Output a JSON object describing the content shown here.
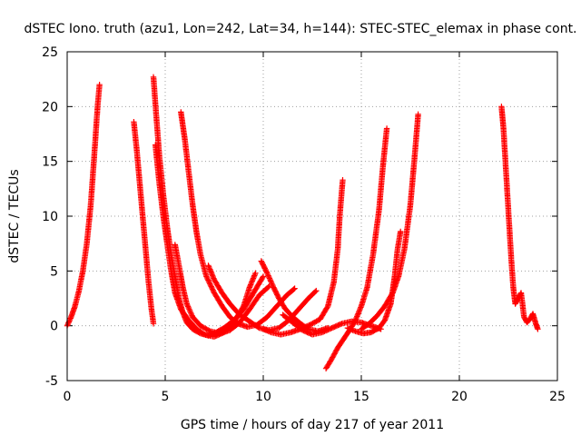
{
  "chart_data": {
    "type": "scatter",
    "title": "dSTEC Iono. truth (azu1, Lon=242, Lat=34, h=144): STEC-STEC_elemax in phase cont.",
    "xlabel": "GPS time / hours of day 217 of year 2011",
    "ylabel": "dSTEC  / TECUs",
    "xlim": [
      0,
      25
    ],
    "ylim": [
      -5,
      25
    ],
    "xticks": [
      0,
      5,
      10,
      15,
      20,
      25
    ],
    "yticks": [
      -5,
      0,
      5,
      10,
      15,
      20,
      25
    ],
    "xtick_labels": [
      "0",
      "5",
      "10",
      "15",
      "20",
      "25"
    ],
    "ytick_labels": [
      "-5",
      "0",
      "5",
      "10",
      "15",
      "20",
      "25"
    ],
    "grid": true,
    "marker": "plus",
    "color": "#ff0000",
    "series": [
      {
        "points": [
          [
            0.0,
            0.0
          ],
          [
            0.2,
            0.8
          ],
          [
            0.4,
            1.8
          ],
          [
            0.6,
            3.2
          ],
          [
            0.8,
            5.0
          ],
          [
            1.0,
            7.5
          ],
          [
            1.2,
            11.0
          ],
          [
            1.4,
            16.0
          ],
          [
            1.55,
            20.0
          ],
          [
            1.65,
            22.0
          ]
        ]
      },
      {
        "points": [
          [
            3.4,
            18.6
          ],
          [
            3.55,
            16.0
          ],
          [
            3.7,
            13.0
          ],
          [
            3.85,
            10.0
          ],
          [
            4.0,
            7.0
          ],
          [
            4.15,
            4.0
          ],
          [
            4.3,
            1.5
          ],
          [
            4.4,
            0.2
          ]
        ]
      },
      {
        "points": [
          [
            4.4,
            22.7
          ],
          [
            4.55,
            19.0
          ],
          [
            4.7,
            15.5
          ],
          [
            4.9,
            12.0
          ],
          [
            5.1,
            9.0
          ],
          [
            5.3,
            6.5
          ],
          [
            5.5,
            4.5
          ],
          [
            5.7,
            2.5
          ],
          [
            5.9,
            1.2
          ],
          [
            6.1,
            0.3
          ],
          [
            6.4,
            -0.3
          ],
          [
            6.8,
            -0.7
          ],
          [
            7.2,
            -0.9
          ],
          [
            7.6,
            -0.6
          ],
          [
            8.0,
            -0.2
          ],
          [
            8.5,
            0.5
          ],
          [
            9.0,
            1.5
          ],
          [
            9.5,
            3.0
          ],
          [
            10.0,
            4.5
          ]
        ]
      },
      {
        "points": [
          [
            4.5,
            16.5
          ],
          [
            4.7,
            13.0
          ],
          [
            4.9,
            10.0
          ],
          [
            5.1,
            7.5
          ],
          [
            5.3,
            5.0
          ],
          [
            5.5,
            3.0
          ],
          [
            5.8,
            1.5
          ],
          [
            6.2,
            0.5
          ],
          [
            6.6,
            -0.3
          ],
          [
            7.0,
            -0.8
          ],
          [
            7.5,
            -1.0
          ],
          [
            8.0,
            -0.6
          ],
          [
            8.5,
            0.3
          ],
          [
            9.0,
            1.8
          ],
          [
            9.3,
            3.5
          ],
          [
            9.6,
            4.8
          ]
        ]
      },
      {
        "points": [
          [
            5.8,
            19.5
          ],
          [
            6.0,
            17.0
          ],
          [
            6.2,
            14.0
          ],
          [
            6.4,
            11.0
          ],
          [
            6.6,
            8.5
          ],
          [
            6.8,
            6.5
          ],
          [
            7.1,
            4.5
          ],
          [
            7.5,
            3.0
          ],
          [
            7.9,
            1.8
          ],
          [
            8.3,
            0.8
          ],
          [
            8.7,
            0.2
          ],
          [
            9.2,
            -0.1
          ],
          [
            9.7,
            0.1
          ],
          [
            10.2,
            0.8
          ],
          [
            10.7,
            1.8
          ],
          [
            11.2,
            2.8
          ],
          [
            11.6,
            3.4
          ]
        ]
      },
      {
        "points": [
          [
            5.5,
            7.4
          ],
          [
            5.7,
            5.5
          ],
          [
            5.9,
            3.5
          ],
          [
            6.1,
            2.0
          ],
          [
            6.4,
            0.8
          ],
          [
            6.8,
            0.0
          ],
          [
            7.3,
            -0.5
          ],
          [
            7.8,
            -0.7
          ],
          [
            8.3,
            -0.4
          ],
          [
            8.8,
            0.3
          ],
          [
            9.3,
            1.5
          ],
          [
            9.8,
            2.8
          ],
          [
            10.3,
            3.6
          ]
        ]
      },
      {
        "points": [
          [
            7.2,
            5.5
          ],
          [
            7.5,
            4.2
          ],
          [
            7.9,
            3.0
          ],
          [
            8.3,
            2.0
          ],
          [
            8.8,
            1.0
          ],
          [
            9.3,
            0.4
          ],
          [
            9.8,
            -0.2
          ],
          [
            10.3,
            -0.4
          ],
          [
            10.8,
            -0.2
          ],
          [
            11.3,
            0.5
          ],
          [
            11.8,
            1.5
          ],
          [
            12.3,
            2.5
          ],
          [
            12.7,
            3.2
          ]
        ]
      },
      {
        "points": [
          [
            9.9,
            5.9
          ],
          [
            10.2,
            4.8
          ],
          [
            10.5,
            3.6
          ],
          [
            10.8,
            2.5
          ],
          [
            11.1,
            1.6
          ],
          [
            11.5,
            0.8
          ],
          [
            11.9,
            0.2
          ],
          [
            12.3,
            -0.3
          ],
          [
            12.8,
            -0.5
          ],
          [
            13.3,
            -0.2
          ]
        ]
      },
      {
        "points": [
          [
            10.0,
            -0.3
          ],
          [
            10.4,
            -0.6
          ],
          [
            10.9,
            -0.8
          ],
          [
            11.4,
            -0.6
          ],
          [
            11.9,
            -0.3
          ],
          [
            12.4,
            0.1
          ],
          [
            12.9,
            0.6
          ],
          [
            13.3,
            1.8
          ],
          [
            13.6,
            4.0
          ],
          [
            13.8,
            7.0
          ],
          [
            13.9,
            10.0
          ],
          [
            14.05,
            13.3
          ]
        ]
      },
      {
        "points": [
          [
            11.0,
            1.0
          ],
          [
            11.5,
            0.3
          ],
          [
            12.0,
            -0.4
          ],
          [
            12.5,
            -0.8
          ],
          [
            13.0,
            -0.6
          ],
          [
            13.5,
            -0.2
          ],
          [
            14.0,
            0.2
          ],
          [
            14.5,
            0.4
          ],
          [
            15.0,
            0.3
          ],
          [
            15.5,
            0.0
          ],
          [
            16.0,
            -0.3
          ]
        ]
      },
      {
        "points": [
          [
            13.2,
            -3.9
          ],
          [
            13.5,
            -3.0
          ],
          [
            13.8,
            -2.0
          ],
          [
            14.1,
            -1.2
          ],
          [
            14.4,
            -0.4
          ],
          [
            14.7,
            0.5
          ],
          [
            15.0,
            1.8
          ],
          [
            15.3,
            3.5
          ],
          [
            15.6,
            6.5
          ],
          [
            15.9,
            10.5
          ],
          [
            16.1,
            14.5
          ],
          [
            16.3,
            18.0
          ]
        ]
      },
      {
        "points": [
          [
            14.3,
            -0.2
          ],
          [
            14.7,
            -0.5
          ],
          [
            15.1,
            -0.7
          ],
          [
            15.5,
            -0.6
          ],
          [
            15.9,
            -0.2
          ],
          [
            16.2,
            0.5
          ],
          [
            16.5,
            2.0
          ],
          [
            16.7,
            4.5
          ],
          [
            16.85,
            7.0
          ],
          [
            17.0,
            8.6
          ]
        ]
      },
      {
        "points": [
          [
            15.0,
            -0.3
          ],
          [
            15.4,
            0.2
          ],
          [
            15.8,
            0.9
          ],
          [
            16.2,
            1.8
          ],
          [
            16.6,
            3.0
          ],
          [
            16.9,
            4.5
          ],
          [
            17.2,
            7.0
          ],
          [
            17.5,
            11.0
          ],
          [
            17.7,
            15.0
          ],
          [
            17.9,
            19.3
          ]
        ]
      },
      {
        "points": [
          [
            22.15,
            20.0
          ],
          [
            22.25,
            18.0
          ],
          [
            22.35,
            15.0
          ],
          [
            22.45,
            12.0
          ],
          [
            22.55,
            9.0
          ],
          [
            22.65,
            6.0
          ],
          [
            22.75,
            3.5
          ],
          [
            22.85,
            2.0
          ],
          [
            23.0,
            2.5
          ],
          [
            23.15,
            3.0
          ],
          [
            23.3,
            0.8
          ],
          [
            23.45,
            0.3
          ],
          [
            23.6,
            0.6
          ],
          [
            23.75,
            1.1
          ],
          [
            23.9,
            0.2
          ],
          [
            24.0,
            -0.3
          ]
        ]
      }
    ]
  }
}
